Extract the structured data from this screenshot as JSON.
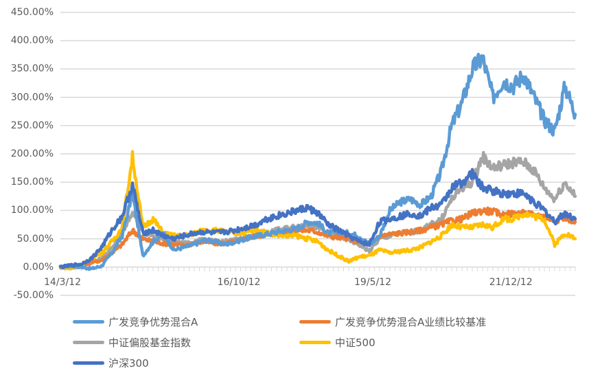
{
  "chart_data": {
    "type": "line",
    "title": "",
    "xlabel": "",
    "ylabel": "",
    "ylim": [
      -50,
      450
    ],
    "y_ticks": [
      "450.00%",
      "400.00%",
      "350.00%",
      "300.00%",
      "250.00%",
      "200.00%",
      "150.00%",
      "100.00%",
      "50.00%",
      "0.00%",
      "-50.00%"
    ],
    "y_tick_values": [
      450,
      400,
      350,
      300,
      250,
      200,
      150,
      100,
      50,
      0,
      -50
    ],
    "x_ticks": [
      "14/3/12",
      "16/10/12",
      "19/5/12",
      "21/12/12"
    ],
    "x_tick_positions": [
      0.0,
      0.3467,
      0.6067,
      0.875
    ],
    "grid": true,
    "legend_position": "bottom",
    "x": [
      0,
      0.02,
      0.04,
      0.06,
      0.08,
      0.1,
      0.12,
      0.14,
      0.16,
      0.18,
      0.2,
      0.22,
      0.24,
      0.26,
      0.28,
      0.3,
      0.32,
      0.34,
      0.36,
      0.38,
      0.4,
      0.42,
      0.44,
      0.46,
      0.48,
      0.5,
      0.52,
      0.54,
      0.56,
      0.58,
      0.6,
      0.62,
      0.64,
      0.66,
      0.68,
      0.7,
      0.72,
      0.74,
      0.76,
      0.78,
      0.8,
      0.82,
      0.84,
      0.86,
      0.88,
      0.9,
      0.92,
      0.94,
      0.96,
      0.98,
      1.0
    ],
    "series": [
      {
        "name": "广发竞争优势混合A",
        "color": "#5B9BD5",
        "values": [
          0,
          2,
          0,
          -3,
          2,
          25,
          55,
          130,
          20,
          45,
          60,
          30,
          35,
          40,
          48,
          45,
          40,
          45,
          50,
          55,
          58,
          62,
          65,
          68,
          80,
          78,
          60,
          62,
          60,
          55,
          40,
          55,
          100,
          115,
          120,
          110,
          125,
          170,
          250,
          290,
          350,
          370,
          300,
          330,
          320,
          340,
          300,
          260,
          240,
          320,
          270
        ]
      },
      {
        "name": "广发竞争优势混合A业绩比较基准",
        "color": "#ED7D31",
        "values": [
          0,
          2,
          3,
          8,
          12,
          25,
          40,
          65,
          50,
          45,
          42,
          40,
          38,
          42,
          45,
          42,
          42,
          45,
          50,
          55,
          58,
          60,
          62,
          65,
          65,
          62,
          55,
          52,
          50,
          45,
          40,
          55,
          58,
          60,
          62,
          65,
          70,
          75,
          82,
          85,
          95,
          100,
          98,
          92,
          95,
          95,
          92,
          90,
          82,
          88,
          80
        ]
      },
      {
        "name": "中证偏股基金指数",
        "color": "#A5A5A5",
        "values": [
          0,
          2,
          2,
          8,
          15,
          35,
          60,
          100,
          60,
          55,
          50,
          45,
          42,
          45,
          48,
          45,
          45,
          48,
          52,
          55,
          60,
          65,
          68,
          72,
          75,
          70,
          60,
          55,
          48,
          40,
          28,
          50,
          55,
          60,
          62,
          65,
          75,
          85,
          120,
          140,
          150,
          195,
          175,
          180,
          185,
          185,
          170,
          140,
          120,
          150,
          125
        ]
      },
      {
        "name": "中证500",
        "color": "#FFC000",
        "values": [
          0,
          -3,
          2,
          15,
          25,
          45,
          70,
          195,
          70,
          85,
          60,
          55,
          55,
          60,
          65,
          65,
          62,
          60,
          62,
          65,
          60,
          58,
          55,
          55,
          50,
          45,
          30,
          20,
          10,
          18,
          20,
          30,
          25,
          28,
          30,
          35,
          45,
          55,
          75,
          70,
          70,
          75,
          70,
          85,
          85,
          95,
          90,
          85,
          40,
          60,
          50
        ]
      },
      {
        "name": "沪深300",
        "color": "#4472C4",
        "values": [
          0,
          3,
          5,
          15,
          35,
          65,
          90,
          145,
          60,
          65,
          55,
          50,
          55,
          60,
          62,
          60,
          62,
          65,
          70,
          75,
          85,
          90,
          95,
          100,
          105,
          95,
          75,
          65,
          55,
          45,
          40,
          80,
          85,
          90,
          95,
          90,
          105,
          110,
          140,
          150,
          165,
          140,
          135,
          130,
          130,
          130,
          115,
          100,
          80,
          95,
          85
        ]
      }
    ]
  },
  "legend": {
    "items": [
      {
        "label": "广发竞争优势混合A",
        "color": "#5B9BD5"
      },
      {
        "label": "广发竞争优势混合A业绩比较基准",
        "color": "#ED7D31"
      },
      {
        "label": "中证偏股基金指数",
        "color": "#A5A5A5"
      },
      {
        "label": "中证500",
        "color": "#FFC000"
      },
      {
        "label": "沪深300",
        "color": "#4472C4"
      }
    ]
  },
  "style": {
    "gridline_color": "#D9D9D9",
    "axis_color": "#D9D9D9",
    "text_color": "#595959"
  }
}
